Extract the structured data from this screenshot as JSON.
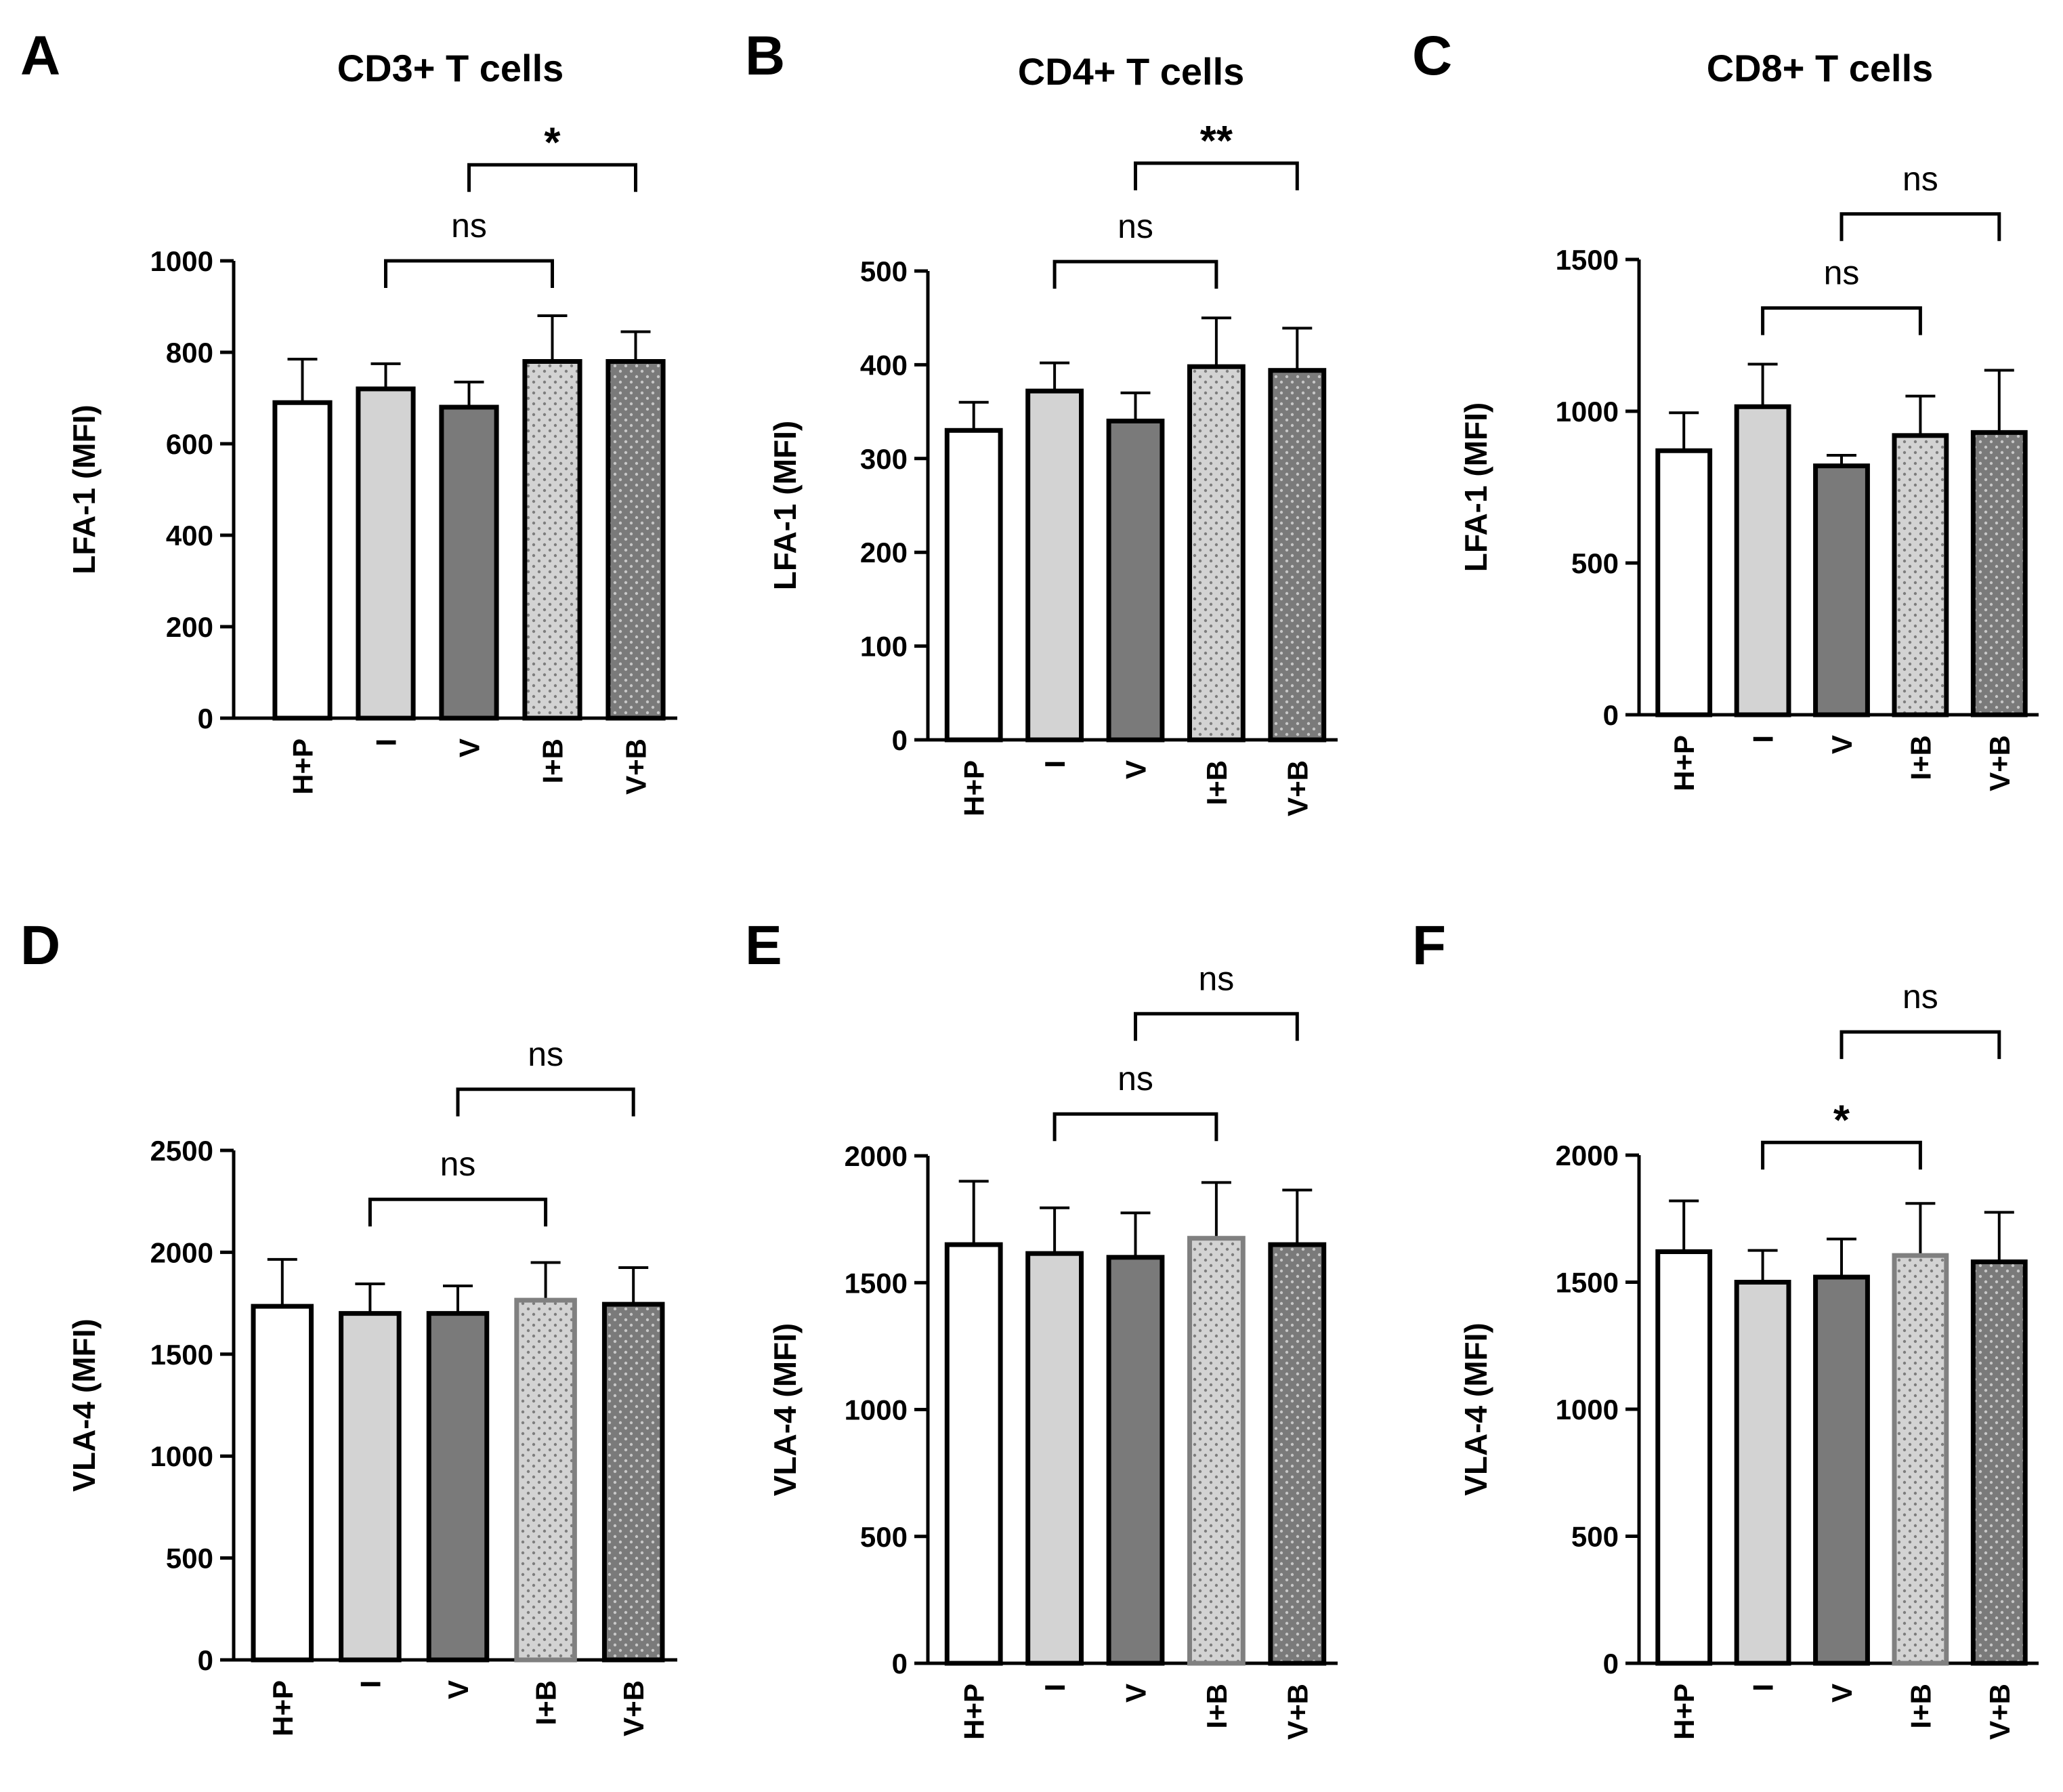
{
  "colors": {
    "white_bar": "#ffffff",
    "light_bar": "#d3d3d3",
    "dark_bar": "#7a7a7a",
    "dot_light": "#7d7d7d",
    "dot_dark": "#c8c8c8",
    "stroke": "#000000"
  },
  "chart_data": [
    {
      "type": "bar",
      "panel": "A",
      "title": "CD3+ T cells",
      "ylabel": "LFA-1 (MFI)",
      "categories": [
        "H+P",
        "I",
        "V",
        "I+B",
        "V+B"
      ],
      "values": [
        690,
        720,
        680,
        780,
        780
      ],
      "errors": [
        95,
        55,
        55,
        100,
        65
      ],
      "ylim": [
        0,
        1000
      ],
      "yticks": [
        0,
        200,
        400,
        600,
        800,
        1000
      ],
      "comparisons": [
        {
          "from": 1,
          "to": 3,
          "label": "ns",
          "y": 1000
        },
        {
          "from": 2,
          "to": 4,
          "label": "*",
          "y": 1210
        }
      ]
    },
    {
      "type": "bar",
      "panel": "B",
      "title": "CD4+ T cells",
      "ylabel": "LFA-1 (MFI)",
      "categories": [
        "H+P",
        "I",
        "V",
        "I+B",
        "V+B"
      ],
      "values": [
        330,
        372,
        340,
        398,
        394
      ],
      "errors": [
        30,
        30,
        30,
        52,
        45
      ],
      "ylim": [
        0,
        500
      ],
      "yticks": [
        0,
        100,
        200,
        300,
        400,
        500
      ],
      "comparisons": [
        {
          "from": 1,
          "to": 3,
          "label": "ns",
          "y": 510
        },
        {
          "from": 2,
          "to": 4,
          "label": "**",
          "y": 615
        }
      ]
    },
    {
      "type": "bar",
      "panel": "C",
      "title": "CD8+ T cells",
      "ylabel": "LFA-1 (MFI)",
      "categories": [
        "H+P",
        "I",
        "V",
        "I+B",
        "V+B"
      ],
      "values": [
        870,
        1015,
        820,
        920,
        930
      ],
      "errors": [
        125,
        140,
        35,
        130,
        205
      ],
      "ylim": [
        0,
        1500
      ],
      "yticks": [
        0,
        500,
        1000,
        1500
      ],
      "comparisons": [
        {
          "from": 1,
          "to": 3,
          "label": "ns",
          "y": 1340
        },
        {
          "from": 2,
          "to": 4,
          "label": "ns",
          "y": 1650
        }
      ]
    },
    {
      "type": "bar",
      "panel": "D",
      "title": "",
      "ylabel": "VLA-4 (MFI)",
      "categories": [
        "H+P",
        "I",
        "V",
        "I+B",
        "V+B"
      ],
      "values": [
        1735,
        1700,
        1700,
        1765,
        1745
      ],
      "errors": [
        230,
        145,
        135,
        185,
        180
      ],
      "ylim": [
        0,
        2500
      ],
      "yticks": [
        0,
        500,
        1000,
        1500,
        2000,
        2500
      ],
      "comparisons": [
        {
          "from": 1,
          "to": 3,
          "label": "ns",
          "y": 2260
        },
        {
          "from": 2,
          "to": 4,
          "label": "ns",
          "y": 2800
        }
      ]
    },
    {
      "type": "bar",
      "panel": "E",
      "title": "",
      "ylabel": "VLA-4 (MFI)",
      "categories": [
        "H+P",
        "I",
        "V",
        "I+B",
        "V+B"
      ],
      "values": [
        1650,
        1615,
        1600,
        1675,
        1650
      ],
      "errors": [
        250,
        180,
        175,
        220,
        215
      ],
      "ylim": [
        0,
        2000
      ],
      "yticks": [
        0,
        500,
        1000,
        1500,
        2000
      ],
      "comparisons": [
        {
          "from": 1,
          "to": 3,
          "label": "ns",
          "y": 2165
        },
        {
          "from": 2,
          "to": 4,
          "label": "ns",
          "y": 2560
        }
      ]
    },
    {
      "type": "bar",
      "panel": "F",
      "title": "",
      "ylabel": "VLA-4 (MFI)",
      "categories": [
        "H+P",
        "I",
        "V",
        "I+B",
        "V+B"
      ],
      "values": [
        1620,
        1500,
        1520,
        1605,
        1580
      ],
      "errors": [
        200,
        125,
        150,
        205,
        195
      ],
      "ylim": [
        0,
        2000
      ],
      "yticks": [
        0,
        500,
        1000,
        1500,
        2000
      ],
      "comparisons": [
        {
          "from": 1,
          "to": 3,
          "label": "*",
          "y": 2050
        },
        {
          "from": 2,
          "to": 4,
          "label": "ns",
          "y": 2485
        }
      ]
    }
  ]
}
